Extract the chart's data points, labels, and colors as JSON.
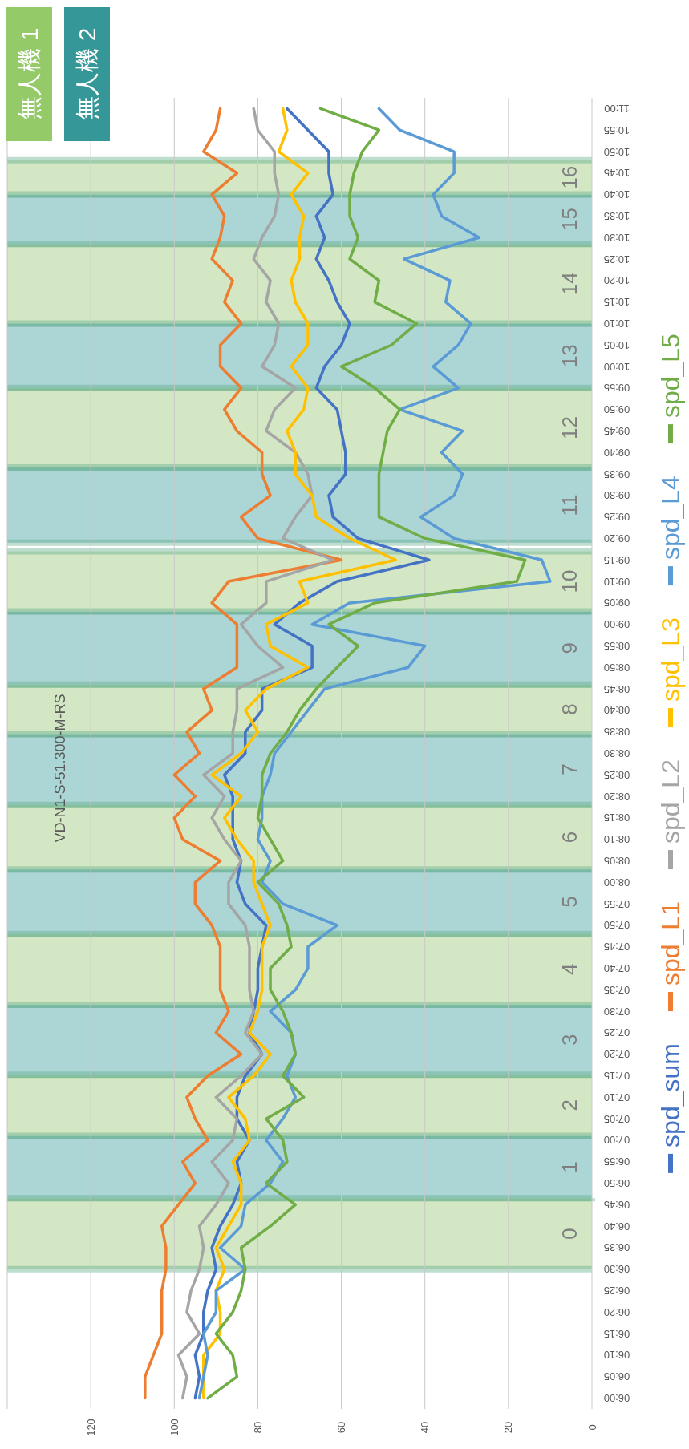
{
  "chart_data": {
    "type": "line",
    "orientation": "horizontal",
    "title": "VD-N1-S-51.300-M-RS",
    "x": [
      6,
      6.0833,
      6.1667,
      6.25,
      6.3333,
      6.4167,
      6.5,
      6.5833,
      6.6667,
      6.75,
      6.8333,
      6.9167,
      7,
      7.0833,
      7.1667,
      7.25,
      7.3333,
      7.4167,
      7.5,
      7.5833,
      7.6667,
      7.75,
      7.8333,
      7.9167,
      8,
      8.0833,
      8.1667,
      8.25,
      8.3333,
      8.4167,
      8.5,
      8.5833,
      8.6667,
      8.75,
      8.8333,
      8.9167,
      9,
      9.0833,
      9.1667,
      9.25,
      9.3333,
      9.4167,
      9.5,
      9.5833,
      9.6667,
      9.75,
      9.8333,
      9.9167,
      10,
      10.0833,
      10.1667,
      10.25,
      10.3333,
      10.4167,
      10.5,
      10.5833,
      10.6667,
      10.75,
      10.8333,
      10.9167,
      11
    ],
    "series": [
      {
        "name": "spd_sum",
        "color": "#4472c4",
        "values": [
          95,
          94,
          95,
          93,
          93,
          92,
          90,
          91,
          89,
          86,
          84,
          85,
          82,
          85,
          85,
          83,
          79,
          82,
          81,
          80,
          80,
          79,
          78,
          83,
          85,
          84,
          86,
          86,
          86,
          88,
          83,
          83,
          79,
          79,
          67,
          67,
          76,
          70,
          61,
          39,
          56,
          62,
          63,
          59,
          59,
          60,
          61,
          66,
          64,
          60,
          58,
          61,
          63,
          66,
          64,
          66,
          62,
          63,
          63,
          68,
          73
        ]
      },
      {
        "name": "spd_L1",
        "color": "#ed7d31",
        "values": [
          107,
          107,
          105,
          103,
          103,
          103,
          102,
          102,
          103,
          99,
          95,
          98,
          92,
          95,
          97,
          92,
          84,
          90,
          87,
          89,
          89,
          89,
          91,
          95,
          95,
          89,
          98,
          100,
          95,
          100,
          94,
          97,
          91,
          93,
          85,
          85,
          85,
          91,
          87,
          60,
          80,
          84,
          77,
          79,
          79,
          85,
          88,
          84,
          89,
          89,
          84,
          88,
          86,
          91,
          89,
          88,
          91,
          85,
          93,
          90,
          89
        ]
      },
      {
        "name": "spd_L2",
        "color": "#a5a5a5",
        "values": [
          98,
          97,
          99,
          94,
          97,
          96,
          94,
          93,
          94,
          90,
          87,
          91,
          86,
          85,
          90,
          84,
          79,
          83,
          81,
          82,
          82,
          82,
          83,
          87,
          87,
          84,
          88,
          91,
          88,
          93,
          86,
          86,
          85,
          85,
          74,
          80,
          84,
          78,
          78,
          62,
          74,
          71,
          67,
          68,
          71,
          78,
          76,
          71,
          79,
          76,
          75,
          78,
          77,
          81,
          79,
          76,
          75,
          76,
          76,
          80,
          81
        ]
      },
      {
        "name": "spd_L3",
        "color": "#ffc000",
        "values": [
          93,
          93,
          93,
          89,
          89,
          90,
          88,
          90,
          87,
          84,
          84,
          86,
          82,
          83,
          87,
          81,
          77,
          82,
          80,
          79,
          79,
          79,
          77,
          79,
          81,
          81,
          85,
          88,
          84,
          91,
          84,
          80,
          83,
          78,
          68,
          77,
          78,
          68,
          70,
          47,
          58,
          66,
          67,
          71,
          71,
          73,
          69,
          68,
          72,
          68,
          68,
          71,
          72,
          70,
          70,
          69,
          72,
          68,
          75,
          73,
          74
        ]
      },
      {
        "name": "spd_L4",
        "color": "#5b9bd5",
        "values": [
          94,
          93,
          92,
          93,
          90,
          90,
          83,
          89,
          84,
          83,
          77,
          74,
          78,
          74,
          71,
          73,
          71,
          72,
          77,
          71,
          68,
          68,
          61,
          74,
          79,
          77,
          80,
          79,
          79,
          77,
          76,
          72,
          68,
          64,
          44,
          40,
          67,
          58,
          10,
          12,
          33,
          41,
          33,
          31,
          36,
          31,
          46,
          32,
          38,
          32,
          29,
          35,
          34,
          45,
          27,
          36,
          38,
          33,
          33,
          46,
          51
        ]
      },
      {
        "name": "spd_L5",
        "color": "#70ad47",
        "values": [
          92,
          85,
          86,
          90,
          86,
          84,
          83,
          84,
          77,
          71,
          78,
          73,
          74,
          78,
          69,
          74,
          71,
          72,
          74,
          77,
          77,
          72,
          73,
          75,
          80,
          74,
          77,
          80,
          79,
          79,
          77,
          73,
          70,
          66,
          61,
          56,
          63,
          52,
          18,
          16,
          40,
          51,
          51,
          51,
          50,
          49,
          46,
          52,
          60,
          48,
          42,
          52,
          51,
          58,
          56,
          58,
          58,
          57,
          55,
          51,
          65
        ]
      }
    ],
    "ylim": [
      5.9583,
      11.0417
    ],
    "yticks": [
      {
        "value": 6,
        "label": "06:00"
      },
      {
        "value": 6.0833,
        "label": "06:05"
      },
      {
        "value": 6.1667,
        "label": "06:10"
      },
      {
        "value": 6.25,
        "label": "06:15"
      },
      {
        "value": 6.3333,
        "label": "06:20"
      },
      {
        "value": 6.4167,
        "label": "06:25"
      },
      {
        "value": 6.5,
        "label": "06:30"
      },
      {
        "value": 6.5833,
        "label": "06:35"
      },
      {
        "value": 6.6667,
        "label": "06:40"
      },
      {
        "value": 6.75,
        "label": "06:45"
      },
      {
        "value": 6.8333,
        "label": "06:50"
      },
      {
        "value": 6.9167,
        "label": "06:55"
      },
      {
        "value": 7,
        "label": "07:00"
      },
      {
        "value": 7.0833,
        "label": "07:05"
      },
      {
        "value": 7.1667,
        "label": "07:10"
      },
      {
        "value": 7.25,
        "label": "07:15"
      },
      {
        "value": 7.3333,
        "label": "07:20"
      },
      {
        "value": 7.4167,
        "label": "07:25"
      },
      {
        "value": 7.5,
        "label": "07:30"
      },
      {
        "value": 7.5833,
        "label": "07:35"
      },
      {
        "value": 7.6667,
        "label": "07:40"
      },
      {
        "value": 7.75,
        "label": "07:45"
      },
      {
        "value": 7.8333,
        "label": "07:50"
      },
      {
        "value": 7.9167,
        "label": "07:55"
      },
      {
        "value": 8,
        "label": "08:00"
      },
      {
        "value": 8.0833,
        "label": "08:05"
      },
      {
        "value": 8.1667,
        "label": "08:10"
      },
      {
        "value": 8.25,
        "label": "08:15"
      },
      {
        "value": 8.3333,
        "label": "08:20"
      },
      {
        "value": 8.4167,
        "label": "08:25"
      },
      {
        "value": 8.5,
        "label": "08:30"
      },
      {
        "value": 8.5833,
        "label": "08:35"
      },
      {
        "value": 8.6667,
        "label": "08:40"
      },
      {
        "value": 8.75,
        "label": "08:45"
      },
      {
        "value": 8.8333,
        "label": "08:50"
      },
      {
        "value": 8.9167,
        "label": "08:55"
      },
      {
        "value": 9,
        "label": "09:00"
      },
      {
        "value": 9.0833,
        "label": "09:05"
      },
      {
        "value": 9.1667,
        "label": "09:10"
      },
      {
        "value": 9.25,
        "label": "09:15"
      },
      {
        "value": 9.3333,
        "label": "09:20"
      },
      {
        "value": 9.4167,
        "label": "09:25"
      },
      {
        "value": 9.5,
        "label": "09:30"
      },
      {
        "value": 9.5833,
        "label": "09:35"
      },
      {
        "value": 9.6667,
        "label": "09:40"
      },
      {
        "value": 9.75,
        "label": "09:45"
      },
      {
        "value": 9.8333,
        "label": "09:50"
      },
      {
        "value": 9.9167,
        "label": "09:55"
      },
      {
        "value": 10,
        "label": "10:00"
      },
      {
        "value": 10.0833,
        "label": "10:05"
      },
      {
        "value": 10.1667,
        "label": "10:10"
      },
      {
        "value": 10.25,
        "label": "10:15"
      },
      {
        "value": 10.3333,
        "label": "10:20"
      },
      {
        "value": 10.4167,
        "label": "10:25"
      },
      {
        "value": 10.5,
        "label": "10:30"
      },
      {
        "value": 10.5833,
        "label": "10:35"
      },
      {
        "value": 10.6667,
        "label": "10:40"
      },
      {
        "value": 10.75,
        "label": "10:45"
      },
      {
        "value": 10.8333,
        "label": "10:50"
      },
      {
        "value": 10.9167,
        "label": "10:55"
      },
      {
        "value": 11,
        "label": "11:00"
      }
    ],
    "xlim": [
      140,
      0
    ],
    "xticks": [
      0,
      20,
      40,
      60,
      80,
      100,
      120
    ],
    "grid": "x",
    "legend": "right",
    "bands": [
      {
        "axis": "y",
        "from": 6.5,
        "to": 6.775,
        "label": "0",
        "color": "#d4e7c4"
      },
      {
        "axis": "y",
        "from": 6.775,
        "to": 7.0167,
        "label": "1",
        "color": "#acd5d5"
      },
      {
        "axis": "y",
        "from": 7.0167,
        "to": 7.2542,
        "label": "2",
        "color": "#d4e7c4"
      },
      {
        "axis": "y",
        "from": 7.2542,
        "to": 7.525,
        "label": "3",
        "color": "#acd5d5"
      },
      {
        "axis": "y",
        "from": 7.525,
        "to": 7.8,
        "label": "4",
        "color": "#d4e7c4"
      },
      {
        "axis": "y",
        "from": 7.8,
        "to": 8.05,
        "label": "5",
        "color": "#acd5d5"
      },
      {
        "axis": "y",
        "from": 8.05,
        "to": 8.3,
        "label": "6",
        "color": "#d4e7c4"
      },
      {
        "axis": "y",
        "from": 8.3,
        "to": 8.575,
        "label": "7",
        "color": "#acd5d5"
      },
      {
        "axis": "y",
        "from": 8.575,
        "to": 8.7667,
        "label": "8",
        "color": "#d4e7c4"
      },
      {
        "axis": "y",
        "from": 8.7667,
        "to": 9.05,
        "label": "9",
        "color": "#acd5d5"
      },
      {
        "axis": "y",
        "from": 9.05,
        "to": 9.2833,
        "label": "10",
        "color": "#d4e7c4"
      },
      {
        "axis": "y",
        "from": 9.3167,
        "to": 9.6083,
        "label": "11",
        "color": "#acd5d5"
      },
      {
        "axis": "y",
        "from": 9.6083,
        "to": 9.9167,
        "label": "12",
        "color": "#d4e7c4"
      },
      {
        "axis": "y",
        "from": 9.9167,
        "to": 10.1667,
        "label": "13",
        "color": "#acd5d5"
      },
      {
        "axis": "y",
        "from": 10.1667,
        "to": 10.475,
        "label": "14",
        "color": "#d4e7c4"
      },
      {
        "axis": "y",
        "from": 10.475,
        "to": 10.6667,
        "label": "15",
        "color": "#acd5d5"
      },
      {
        "axis": "y",
        "from": 10.6667,
        "to": 10.8,
        "label": "16",
        "color": "#d4e7c4"
      }
    ],
    "annotations": [
      "無人機 1",
      "無人機 2"
    ]
  }
}
